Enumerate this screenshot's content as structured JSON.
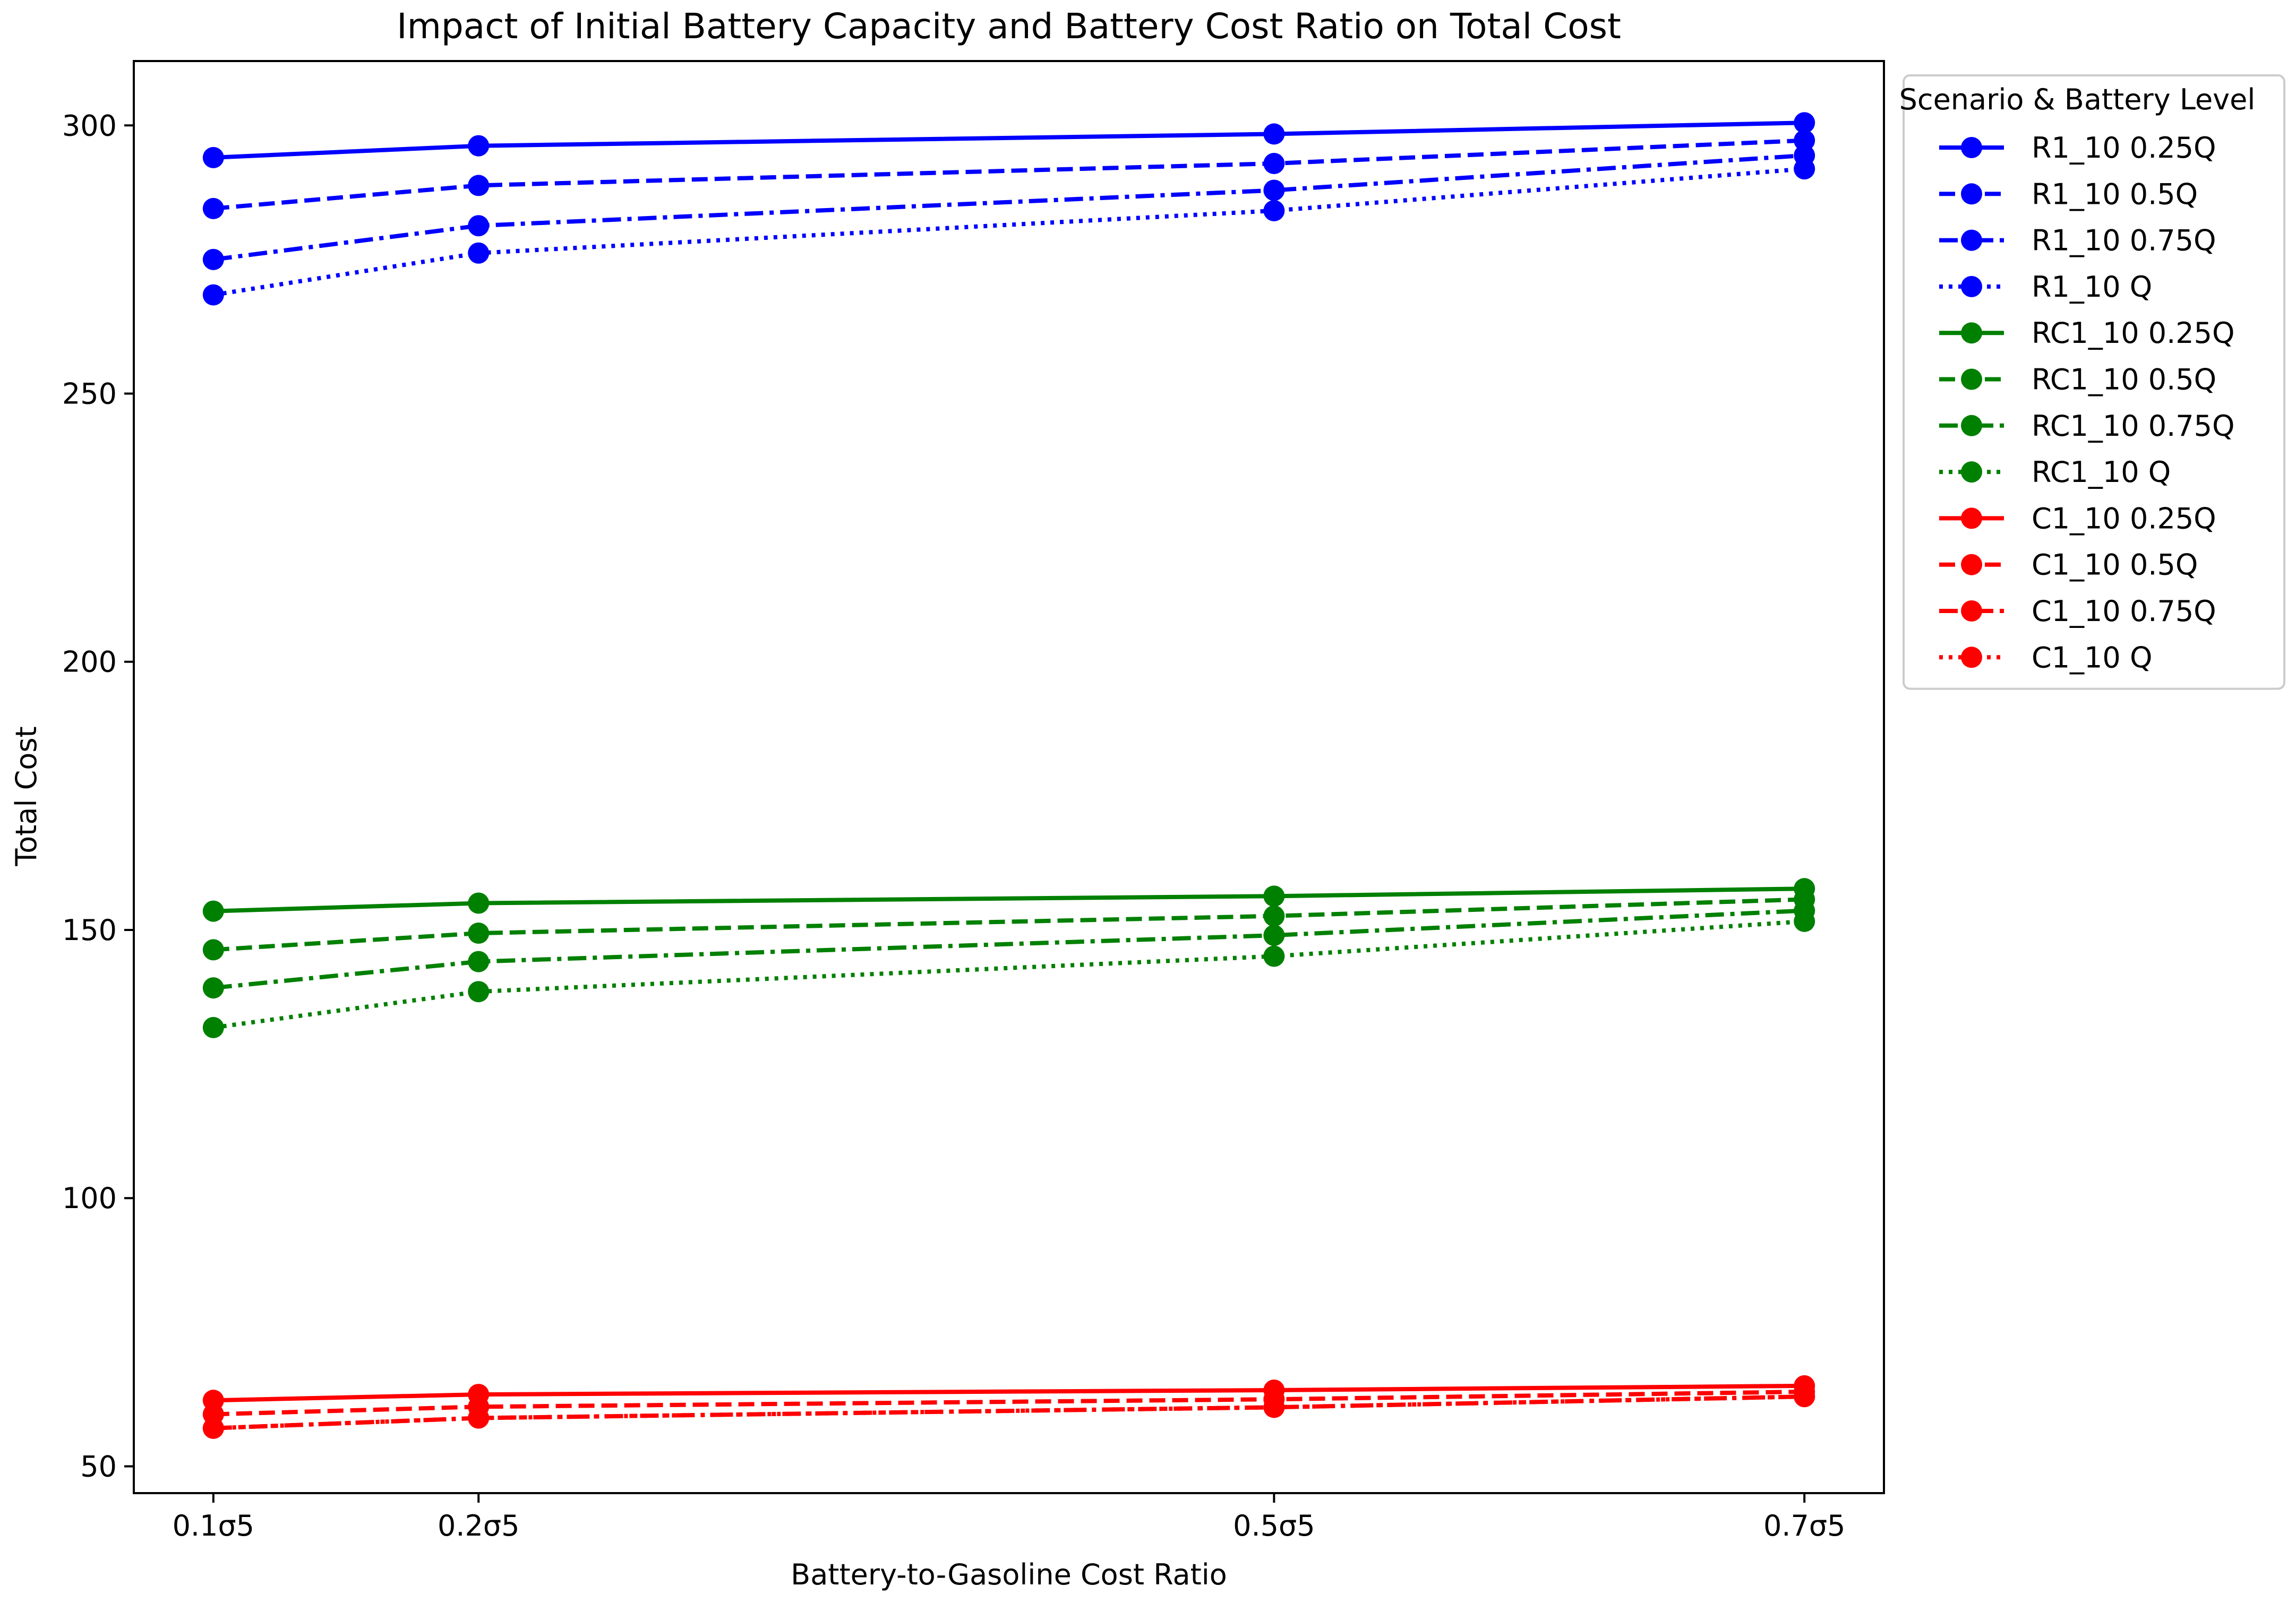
{
  "chart_data": {
    "type": "line",
    "title": "Impact of Initial Battery Capacity and Battery Cost Ratio on Total Cost",
    "xlabel": "Battery-to-Gasoline Cost Ratio",
    "ylabel": "Total Cost",
    "x": [
      0.1,
      0.2,
      0.5,
      0.7
    ],
    "x_tick_labels": [
      "0.1σ5",
      "0.2σ5",
      "0.5σ5",
      "0.7σ5"
    ],
    "xlim": [
      0.07,
      0.73
    ],
    "ylim": [
      45,
      312
    ],
    "y_ticks": [
      50,
      100,
      150,
      200,
      250,
      300
    ],
    "grid": false,
    "legend": {
      "title": "Scenario & Battery Level",
      "placement": "outside-right-top"
    },
    "series": [
      {
        "name": "R1_10 0.25Q",
        "color": "#0000ff",
        "dash": "solid",
        "values": [
          294.0,
          296.2,
          298.4,
          300.5
        ]
      },
      {
        "name": "R1_10 0.5Q",
        "color": "#0000ff",
        "dash": "dashed",
        "values": [
          284.5,
          288.8,
          292.9,
          297.2
        ]
      },
      {
        "name": "R1_10 0.75Q",
        "color": "#0000ff",
        "dash": "dashdot",
        "values": [
          275.0,
          281.3,
          287.9,
          294.4
        ]
      },
      {
        "name": "R1_10 Q",
        "color": "#0000ff",
        "dash": "dotted",
        "values": [
          268.4,
          276.2,
          284.1,
          291.9
        ]
      },
      {
        "name": "RC1_10 0.25Q",
        "color": "#008000",
        "dash": "solid",
        "values": [
          153.5,
          155.0,
          156.3,
          157.7
        ]
      },
      {
        "name": "RC1_10 0.5Q",
        "color": "#008000",
        "dash": "dashed",
        "values": [
          146.3,
          149.4,
          152.6,
          155.7
        ]
      },
      {
        "name": "RC1_10 0.75Q",
        "color": "#008000",
        "dash": "dashdot",
        "values": [
          139.2,
          144.1,
          149.0,
          153.6
        ]
      },
      {
        "name": "RC1_10 Q",
        "color": "#008000",
        "dash": "dotted",
        "values": [
          131.8,
          138.5,
          145.1,
          151.6
        ]
      },
      {
        "name": "C1_10 0.25Q",
        "color": "#ff0000",
        "dash": "solid",
        "values": [
          62.3,
          63.4,
          64.2,
          65.0
        ]
      },
      {
        "name": "C1_10 0.5Q",
        "color": "#ff0000",
        "dash": "dashed",
        "values": [
          59.7,
          61.1,
          62.5,
          63.9
        ]
      },
      {
        "name": "C1_10 0.75Q",
        "color": "#ff0000",
        "dash": "dashdot",
        "values": [
          57.1,
          59.0,
          61.0,
          63.0
        ]
      },
      {
        "name": "C1_10 Q",
        "color": "#ff0000",
        "dash": "dotted",
        "values": [
          57.1,
          59.0,
          61.0,
          63.0
        ]
      }
    ]
  }
}
